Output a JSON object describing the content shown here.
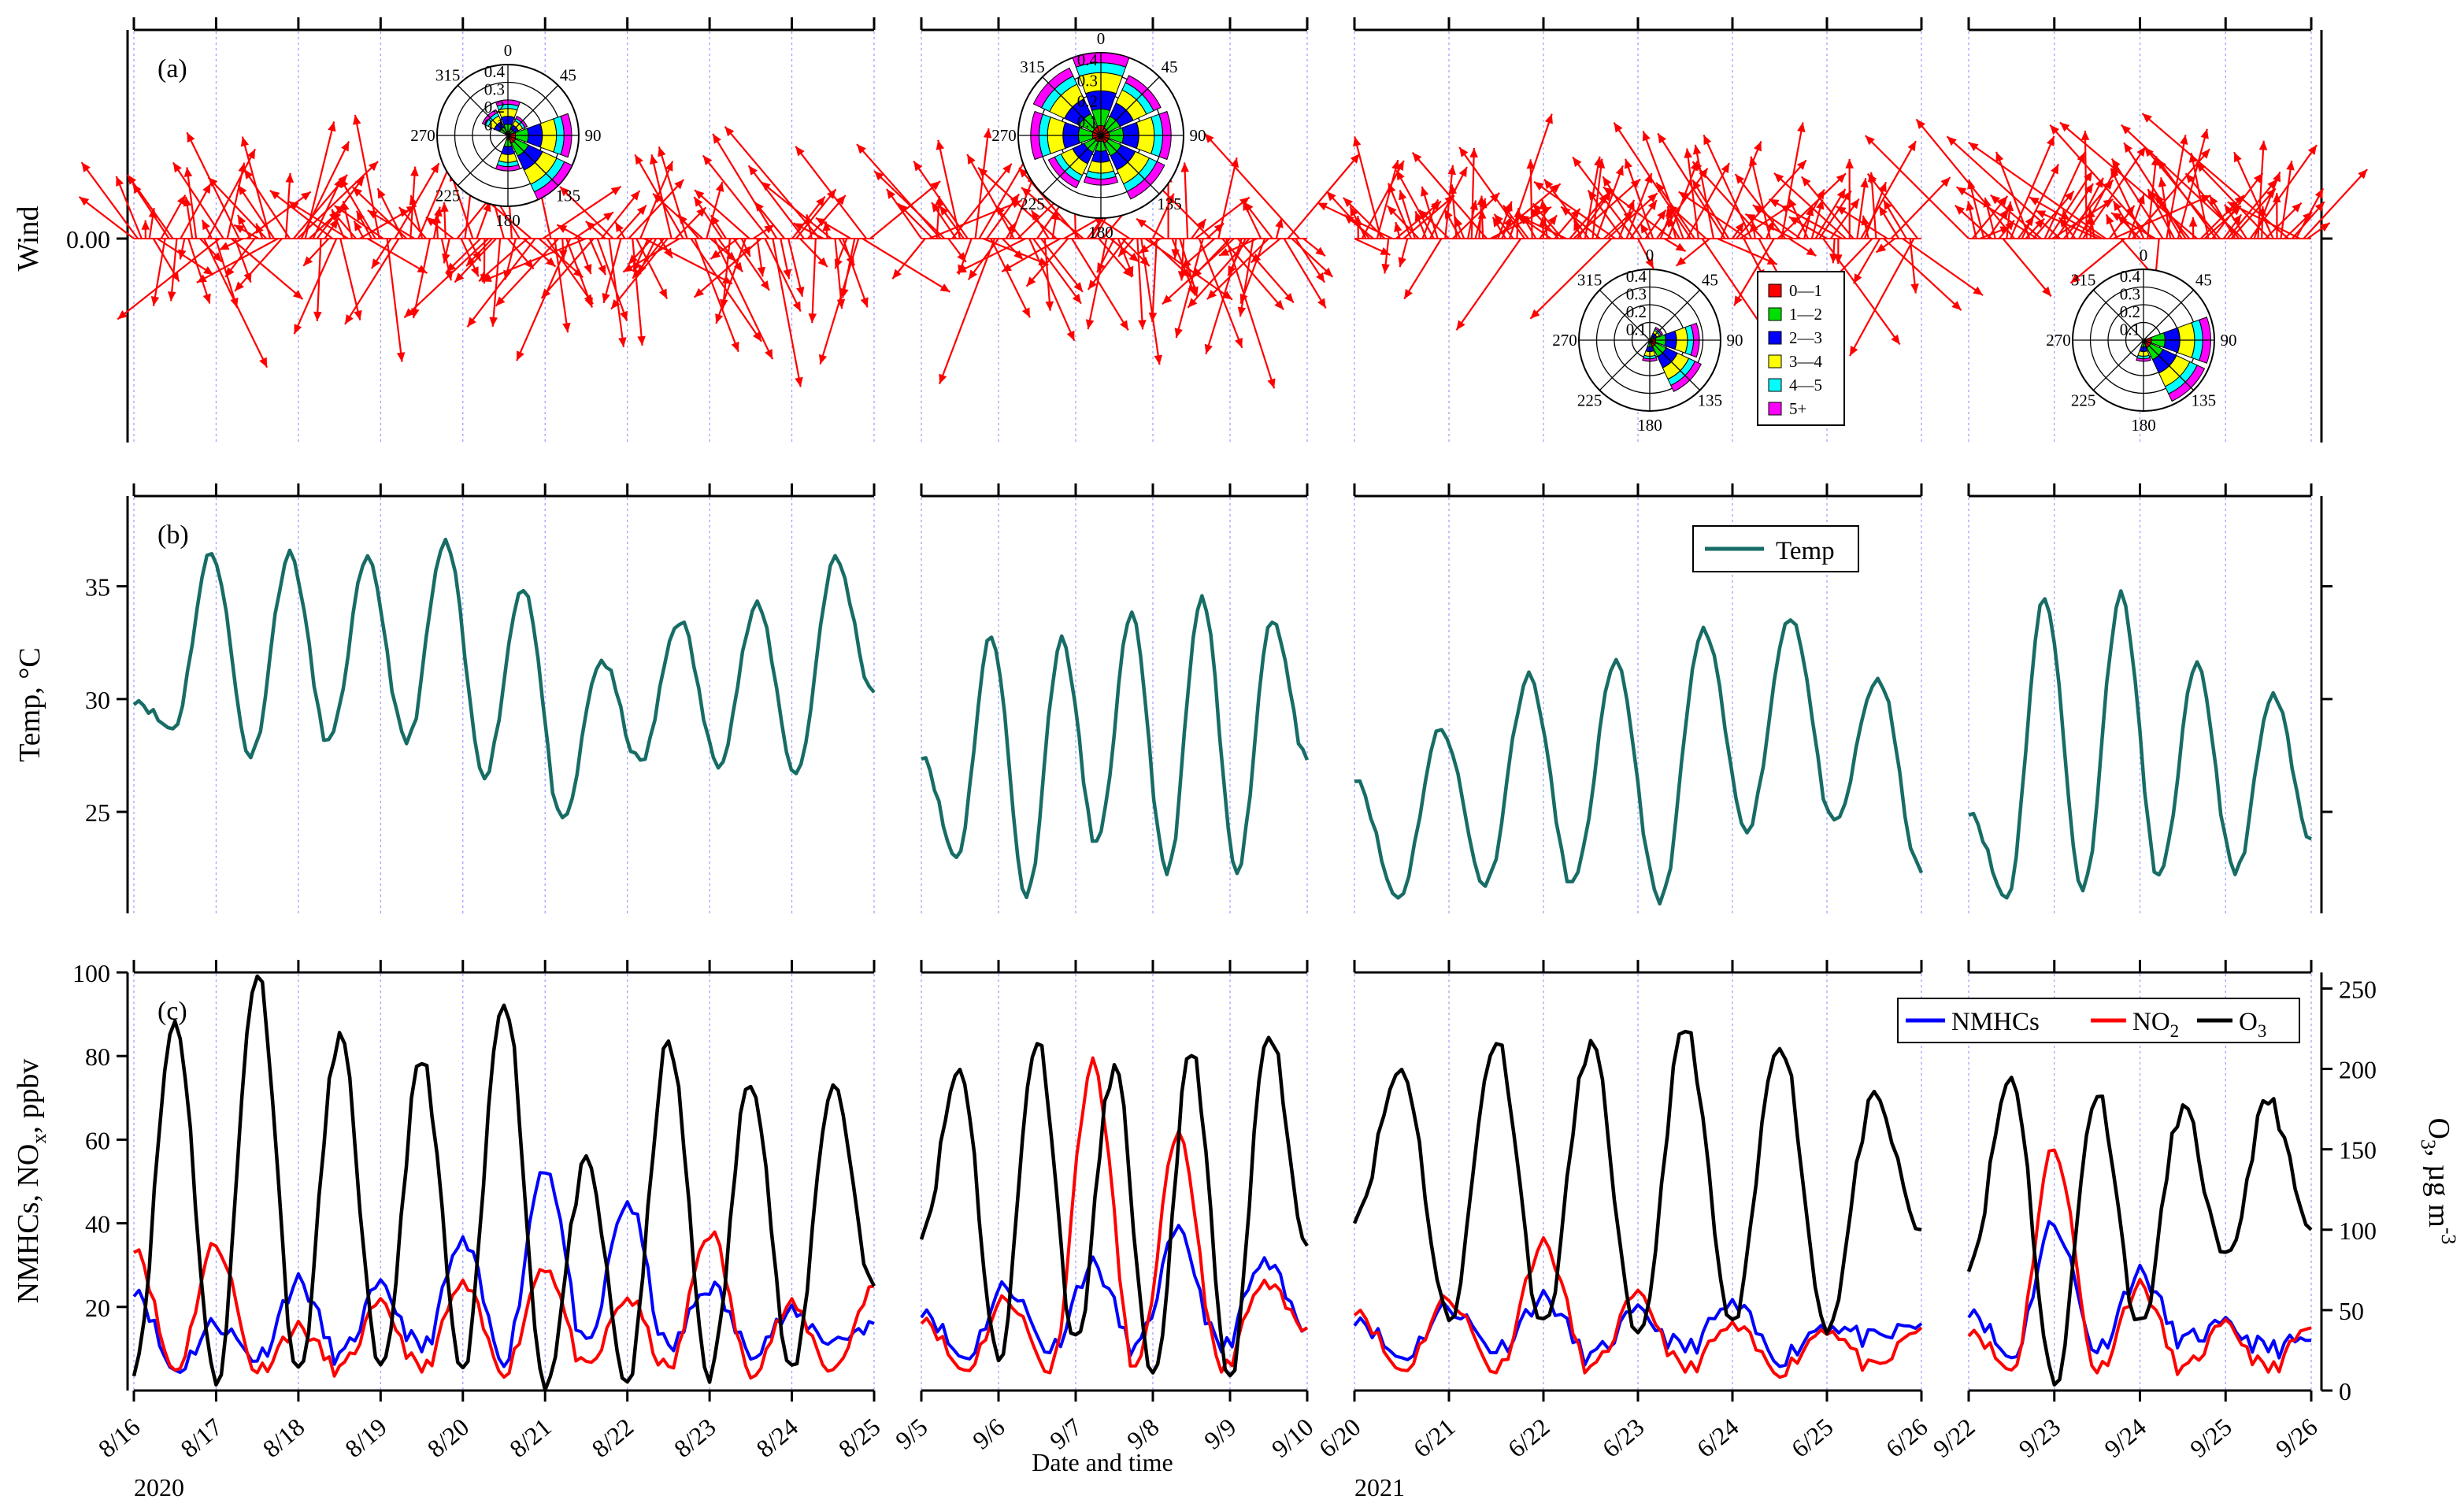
{
  "chart_data": {
    "type": "line",
    "title": "",
    "segments": [
      {
        "start": "8/16",
        "end": "8/25",
        "year_label": "2020",
        "tick_labels": [
          "8/16",
          "8/17",
          "8/18",
          "8/19",
          "8/20",
          "8/21",
          "8/22",
          "8/23",
          "8/24",
          "8/25"
        ]
      },
      {
        "start": "9/5",
        "end": "9/10",
        "year_label": "",
        "tick_labels": [
          "9/5",
          "9/6",
          "9/7",
          "9/8",
          "9/9",
          "9/10"
        ]
      },
      {
        "start": "6/20",
        "end": "6/26",
        "year_label": "2021",
        "tick_labels": [
          "6/20",
          "6/21",
          "6/22",
          "6/23",
          "6/24",
          "6/25",
          "6/26"
        ]
      },
      {
        "start": "9/22",
        "end": "9/26",
        "year_label": "",
        "tick_labels": [
          "9/22",
          "9/23",
          "9/24",
          "9/25",
          "9/26"
        ]
      }
    ],
    "xlabel": "Date and time",
    "panels": {
      "a": {
        "tag": "(a)",
        "ylabel": "Wind",
        "ytick_label": "0.00",
        "vector_color": "#ff0000",
        "rose_directions": [
          "0",
          "45",
          "90",
          "135",
          "180",
          "225",
          "270",
          "315"
        ],
        "rose_rings": [
          "0.1",
          "0.2",
          "0.3",
          "0.4"
        ],
        "speed_bins": [
          {
            "label": "0—1",
            "color": "#ff0000"
          },
          {
            "label": "1—2",
            "color": "#00e000"
          },
          {
            "label": "2—3",
            "color": "#0000ff"
          },
          {
            "label": "3—4",
            "color": "#ffff00"
          },
          {
            "label": "4—5",
            "color": "#00ffff"
          },
          {
            "label": "5+",
            "color": "#ff00ff"
          }
        ]
      },
      "b": {
        "tag": "(b)",
        "ylabel": "Temp, °C",
        "ylim": [
          20.5,
          39
        ],
        "yticks": [
          "25",
          "30",
          "35"
        ],
        "legend": "Temp",
        "series": [
          {
            "name": "Temp",
            "color": "#176d66"
          }
        ],
        "daily_extrema": [
          [
            30.0,
            28.7,
            36.5,
            27.5,
            36.4,
            28.1,
            36.1,
            28.1,
            36.9,
            26.7,
            35.0,
            24.5,
            31.7,
            27.2,
            33.5,
            27.2,
            34.1,
            26.7,
            36.2,
            30.3
          ],
          [
            27.6,
            23.0,
            32.8,
            21.3,
            32.6,
            23.6,
            33.6,
            22.3,
            34.4,
            22.5,
            33.6,
            27.3
          ],
          [
            26.6,
            21.2,
            28.7,
            21.8,
            31.0,
            21.8,
            31.5,
            21.0,
            33.0,
            24.3,
            33.7,
            24.4,
            30.9,
            22.3
          ],
          [
            25.1,
            21.2,
            34.5,
            21.6,
            34.6,
            22.1,
            31.4,
            22.3,
            30.1,
            23.8
          ]
        ]
      },
      "c": {
        "tag": "(c)",
        "ylabel": "NMHCs, NOx, ppbv",
        "ylabel_html": [
          "NMHCs, NO",
          "x",
          ", ppbv"
        ],
        "ylim": [
          0,
          100
        ],
        "yticks": [
          "20",
          "40",
          "60",
          "80",
          "100"
        ],
        "y2label": [
          "O",
          "3",
          ", µg m",
          "-3"
        ],
        "y2lim": [
          0,
          260
        ],
        "y2ticks": [
          "0",
          "50",
          "100",
          "150",
          "200",
          "250"
        ],
        "series": [
          {
            "name": "NMHCs",
            "color": "#0000ff"
          },
          {
            "name": "NO₂",
            "label": [
              "NO",
              "2"
            ],
            "color": "#ff0000"
          },
          {
            "name": "O₃",
            "label": [
              "O",
              "3"
            ],
            "color": "#000000",
            "axis": "right"
          }
        ],
        "o3_daily_extrema": [
          [
            15,
            230,
            5,
            260,
            10,
            220,
            10,
            205,
            10,
            245,
            5,
            140,
            5,
            215,
            10,
            195,
            10,
            190,
            65
          ],
          [
            100,
            200,
            20,
            218,
            30,
            200,
            5,
            210,
            5,
            225,
            90
          ],
          [
            110,
            200,
            45,
            218,
            40,
            215,
            30,
            225,
            40,
            218,
            40,
            180,
            100
          ],
          [
            80,
            195,
            5,
            185,
            40,
            175,
            80,
            180,
            100
          ]
        ],
        "no2_daily_extrema": [
          [
            35,
            5,
            35,
            5,
            15,
            5,
            20,
            5,
            25,
            5,
            30,
            5,
            22,
            5,
            38,
            5,
            20,
            5,
            25
          ],
          [
            18,
            5,
            22,
            5,
            78,
            5,
            60,
            5,
            25,
            15
          ],
          [
            20,
            5,
            22,
            5,
            35,
            5,
            22,
            5,
            15,
            5,
            15,
            5,
            15
          ],
          [
            15,
            5,
            58,
            5,
            25,
            5,
            15,
            5,
            15
          ]
        ],
        "nmhc_daily_extrema": [
          [
            25,
            5,
            16,
            8,
            26,
            8,
            24,
            10,
            35,
            8,
            54,
            10,
            45,
            10,
            25,
            10,
            18,
            12,
            16
          ],
          [
            20,
            8,
            25,
            10,
            30,
            10,
            37,
            10,
            30,
            15
          ],
          [
            18,
            8,
            20,
            10,
            22,
            8,
            18,
            10,
            20,
            8,
            16,
            12,
            16
          ],
          [
            20,
            8,
            40,
            10,
            28,
            12,
            15,
            10,
            12
          ]
        ]
      }
    }
  }
}
